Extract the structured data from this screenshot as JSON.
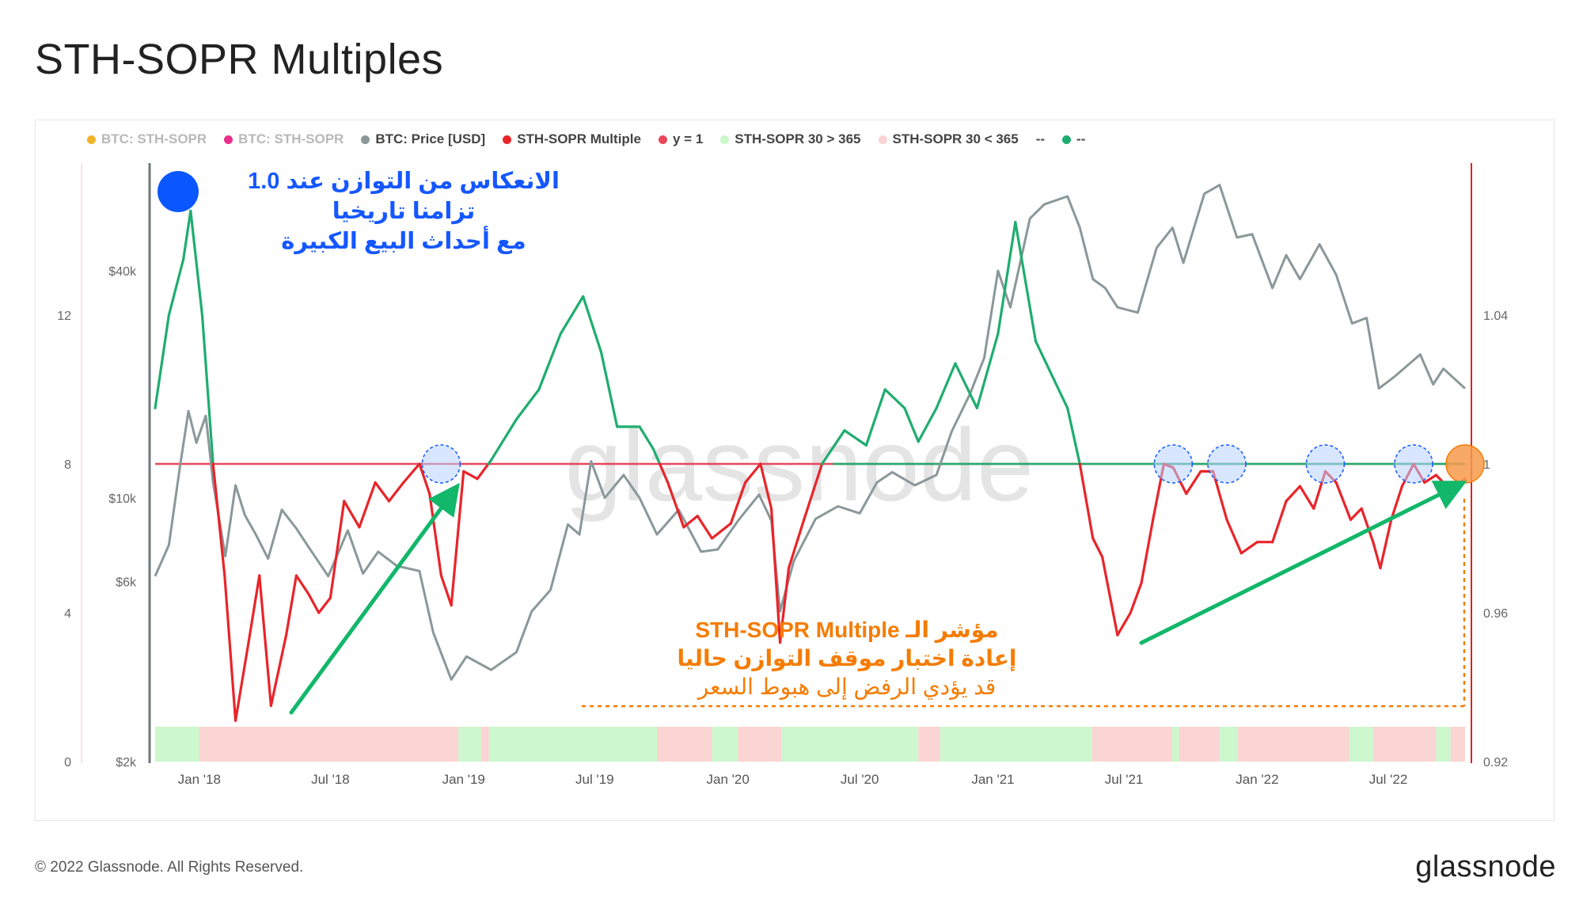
{
  "page": {
    "title": "STH-SOPR Multiples",
    "copyright": "© 2022 Glassnode. All Rights Reserved.",
    "logo_text": "glassnode",
    "watermark": "glassnode"
  },
  "legend": [
    {
      "label": "BTC: STH-SOPR",
      "color": "#f0b429",
      "faded": true
    },
    {
      "label": "BTC: STH-SOPR",
      "color": "#ea2f8c",
      "faded": true
    },
    {
      "label": "BTC: Price [USD]",
      "color": "#8a9899",
      "faded": false
    },
    {
      "label": "STH-SOPR Multiple",
      "color": "#e8252a",
      "faded": false
    },
    {
      "label": "y = 1",
      "color": "#e8475a",
      "faded": false
    },
    {
      "label": "STH-SOPR 30 > 365",
      "color": "#c9f7c9",
      "faded": false
    },
    {
      "label": "STH-SOPR 30 < 365",
      "color": "#fbd3d3",
      "faded": false
    },
    {
      "label": "--",
      "color": null,
      "faded": false
    },
    {
      "label": "--",
      "color": "#1fad6f",
      "faded": false
    }
  ],
  "annotations": {
    "blue_line1": "الانعكاس من التوازن عند 1.0",
    "blue_line2": "تزامنا تاريخيا",
    "blue_line3": "مع أحداث البيع الكبيرة",
    "orange_line1": "مؤشر الـ STH-SOPR Multiple",
    "orange_line2": "إعادة اختبار موقف التوازن حاليا",
    "orange_line3": "قد يؤدي الرفض إلى هبوط السعر"
  },
  "chart_data": {
    "type": "line",
    "x_ticks": [
      "Jan '18",
      "Jul '18",
      "Jan '19",
      "Jul '19",
      "Jan '20",
      "Jul '20",
      "Jan '21",
      "Jul '21",
      "Jan '22",
      "Jul '22"
    ],
    "x_range": [
      "2017-11-01",
      "2022-10-15"
    ],
    "left_axis_ticks": [
      "0",
      "4",
      "8",
      "12"
    ],
    "left_axis_range": [
      0,
      16
    ],
    "price_axis_ticks": [
      "$2k",
      "$6k",
      "$10k",
      "$40k"
    ],
    "price_axis_scale": "log",
    "right_axis_ticks": [
      "0.92",
      "0.96",
      "1",
      "1.04"
    ],
    "right_axis_range": [
      0.92,
      1.08
    ],
    "threshold_y": 1,
    "series": [
      {
        "name": "BTC: Price [USD]",
        "color": "#8a9899",
        "x": [
          "2017-11-01",
          "2017-11-20",
          "2017-12-05",
          "2017-12-17",
          "2017-12-28",
          "2018-01-10",
          "2018-01-20",
          "2018-02-06",
          "2018-02-20",
          "2018-03-05",
          "2018-03-20",
          "2018-04-06",
          "2018-04-25",
          "2018-05-15",
          "2018-06-01",
          "2018-06-28",
          "2018-07-25",
          "2018-08-15",
          "2018-09-05",
          "2018-10-01",
          "2018-11-01",
          "2018-11-20",
          "2018-12-15",
          "2019-01-05",
          "2019-02-08",
          "2019-03-15",
          "2019-04-05",
          "2019-05-01",
          "2019-05-25",
          "2019-06-10",
          "2019-06-26",
          "2019-07-15",
          "2019-08-10",
          "2019-09-01",
          "2019-09-25",
          "2019-10-25",
          "2019-11-25",
          "2019-12-18",
          "2020-01-15",
          "2020-02-13",
          "2020-03-01",
          "2020-03-13",
          "2020-04-01",
          "2020-05-01",
          "2020-06-01",
          "2020-07-01",
          "2020-07-25",
          "2020-08-15",
          "2020-09-15",
          "2020-10-15",
          "2020-11-05",
          "2020-11-30",
          "2020-12-20",
          "2021-01-08",
          "2021-01-25",
          "2021-02-21",
          "2021-03-13",
          "2021-04-14",
          "2021-05-01",
          "2021-05-19",
          "2021-06-05",
          "2021-06-22",
          "2021-07-20",
          "2021-08-15",
          "2021-09-06",
          "2021-09-21",
          "2021-10-20",
          "2021-11-10",
          "2021-12-04",
          "2021-12-25",
          "2022-01-22",
          "2022-02-10",
          "2022-03-01",
          "2022-03-28",
          "2022-04-20",
          "2022-05-12",
          "2022-06-01",
          "2022-06-18",
          "2022-07-10",
          "2022-08-14",
          "2022-09-01",
          "2022-09-15",
          "2022-10-15"
        ],
        "values": [
          6200,
          7500,
          12000,
          17000,
          14000,
          16500,
          11000,
          7000,
          10800,
          9000,
          8000,
          6900,
          9300,
          8300,
          7400,
          6200,
          8200,
          6300,
          7200,
          6600,
          6400,
          4400,
          3300,
          3800,
          3500,
          3900,
          5000,
          5700,
          8500,
          8000,
          12500,
          10000,
          11500,
          10000,
          8000,
          9300,
          7200,
          7300,
          8700,
          10200,
          8700,
          5000,
          6800,
          8800,
          9500,
          9100,
          11000,
          11700,
          10800,
          11500,
          15000,
          18800,
          23500,
          40000,
          32000,
          55000,
          60000,
          63000,
          52000,
          38000,
          36000,
          32000,
          31000,
          46000,
          52000,
          42000,
          64000,
          67500,
          49000,
          50000,
          36000,
          44000,
          38000,
          47000,
          39000,
          29000,
          30000,
          19500,
          21000,
          24000,
          20000,
          22000,
          19500
        ]
      },
      {
        "name": "STH-SOPR Multiple",
        "color": "#e8252a",
        "x": [
          "2017-11-01",
          "2017-11-20",
          "2017-12-10",
          "2017-12-20",
          "2018-01-05",
          "2018-01-20",
          "2018-02-05",
          "2018-02-20",
          "2018-03-10",
          "2018-03-25",
          "2018-04-10",
          "2018-05-01",
          "2018-05-15",
          "2018-06-01",
          "2018-06-15",
          "2018-07-01",
          "2018-07-20",
          "2018-08-10",
          "2018-09-01",
          "2018-09-20",
          "2018-10-10",
          "2018-11-01",
          "2018-11-15",
          "2018-12-01",
          "2018-12-15",
          "2019-01-01",
          "2019-01-20",
          "2019-02-08",
          "2019-03-15",
          "2019-04-15",
          "2019-05-15",
          "2019-06-15",
          "2019-07-10",
          "2019-08-01",
          "2019-09-01",
          "2019-09-20",
          "2019-10-10",
          "2019-11-01",
          "2019-11-20",
          "2019-12-10",
          "2020-01-05",
          "2020-01-25",
          "2020-02-15",
          "2020-03-01",
          "2020-03-13",
          "2020-03-25",
          "2020-04-15",
          "2020-05-10",
          "2020-06-10",
          "2020-07-10",
          "2020-08-05",
          "2020-09-01",
          "2020-09-20",
          "2020-10-15",
          "2020-11-10",
          "2020-12-10",
          "2021-01-08",
          "2021-02-01",
          "2021-03-01",
          "2021-04-14",
          "2021-05-01",
          "2021-05-19",
          "2021-06-01",
          "2021-06-22",
          "2021-07-10",
          "2021-07-25",
          "2021-08-10",
          "2021-08-25",
          "2021-09-07",
          "2021-09-25",
          "2021-10-15",
          "2021-11-01",
          "2021-11-20",
          "2021-12-10",
          "2022-01-01",
          "2022-01-22",
          "2022-02-10",
          "2022-03-01",
          "2022-03-20",
          "2022-04-05",
          "2022-04-20",
          "2022-05-10",
          "2022-05-25",
          "2022-06-10",
          "2022-06-20",
          "2022-07-05",
          "2022-07-20",
          "2022-08-05",
          "2022-08-20",
          "2022-09-05",
          "2022-09-25",
          "2022-10-15"
        ],
        "values": [
          9.5,
          12,
          13.5,
          14.8,
          12,
          8.0,
          5.0,
          1.1,
          3.2,
          5.0,
          1.5,
          3.4,
          5.0,
          4.5,
          4.0,
          4.4,
          7.0,
          6.3,
          7.5,
          7.0,
          7.5,
          8.0,
          7.2,
          5.0,
          4.2,
          7.8,
          7.6,
          8.1,
          9.2,
          10.0,
          11.5,
          12.5,
          11.0,
          9.0,
          9.0,
          8.4,
          7.5,
          6.3,
          6.6,
          6.0,
          6.4,
          7.5,
          8.0,
          6.8,
          3.2,
          5.2,
          6.5,
          8.0,
          8.9,
          8.5,
          10.0,
          9.5,
          8.6,
          9.5,
          10.7,
          9.5,
          11.5,
          14.5,
          11.3,
          9.5,
          8.0,
          6.0,
          5.5,
          3.4,
          4.0,
          4.8,
          6.5,
          8.0,
          7.9,
          7.2,
          7.8,
          7.8,
          6.5,
          5.6,
          5.9,
          5.9,
          7.0,
          7.4,
          6.8,
          7.8,
          7.5,
          6.5,
          6.8,
          5.9,
          5.2,
          6.5,
          7.4,
          8.0,
          7.5,
          7.7,
          7.3,
          7.6
        ]
      }
    ],
    "regime_bands": [
      {
        "start": "2017-11-01",
        "end": "2018-01-01",
        "regime": "STH-SOPR 30 > 365"
      },
      {
        "start": "2018-01-01",
        "end": "2018-12-25",
        "regime": "STH-SOPR 30 < 365"
      },
      {
        "start": "2018-12-25",
        "end": "2019-01-25",
        "regime": "STH-SOPR 30 > 365"
      },
      {
        "start": "2019-01-25",
        "end": "2019-02-05",
        "regime": "STH-SOPR 30 < 365"
      },
      {
        "start": "2019-02-05",
        "end": "2019-09-25",
        "regime": "STH-SOPR 30 > 365"
      },
      {
        "start": "2019-09-25",
        "end": "2019-12-10",
        "regime": "STH-SOPR 30 < 365"
      },
      {
        "start": "2019-12-10",
        "end": "2020-01-15",
        "regime": "STH-SOPR 30 > 365"
      },
      {
        "start": "2020-01-15",
        "end": "2020-03-15",
        "regime": "STH-SOPR 30 < 365"
      },
      {
        "start": "2020-03-15",
        "end": "2020-09-20",
        "regime": "STH-SOPR 30 > 365"
      },
      {
        "start": "2020-09-20",
        "end": "2020-10-20",
        "regime": "STH-SOPR 30 < 365"
      },
      {
        "start": "2020-10-20",
        "end": "2021-05-18",
        "regime": "STH-SOPR 30 > 365"
      },
      {
        "start": "2021-05-18",
        "end": "2021-09-05",
        "regime": "STH-SOPR 30 < 365"
      },
      {
        "start": "2021-09-05",
        "end": "2021-09-15",
        "regime": "STH-SOPR 30 > 365"
      },
      {
        "start": "2021-09-15",
        "end": "2021-11-10",
        "regime": "STH-SOPR 30 < 365"
      },
      {
        "start": "2021-11-10",
        "end": "2021-12-05",
        "regime": "STH-SOPR 30 > 365"
      },
      {
        "start": "2021-12-05",
        "end": "2022-05-08",
        "regime": "STH-SOPR 30 < 365"
      },
      {
        "start": "2022-05-08",
        "end": "2022-06-10",
        "regime": "STH-SOPR 30 > 365"
      },
      {
        "start": "2022-06-10",
        "end": "2022-09-05",
        "regime": "STH-SOPR 30 < 365"
      },
      {
        "start": "2022-09-05",
        "end": "2022-09-25",
        "regime": "STH-SOPR 30 > 365"
      },
      {
        "start": "2022-09-25",
        "end": "2022-10-15",
        "regime": "STH-SOPR 30 < 365"
      }
    ],
    "highlighted_retests": [
      "2018-12-01",
      "2021-09-07",
      "2021-11-20",
      "2022-04-05",
      "2022-08-05",
      "2022-10-15"
    ],
    "colors": {
      "price": "#8a9899",
      "multiple_below": "#e8252a",
      "multiple_above": "#1fad6f",
      "threshold": "#e8475a",
      "band_green": "#cdf7cd",
      "band_red": "#fbd4d4",
      "arrow": "#12b76a",
      "highlight_blue": "#1557ff",
      "highlight_orange": "#f57c00",
      "right_axis": "#e02020"
    }
  }
}
